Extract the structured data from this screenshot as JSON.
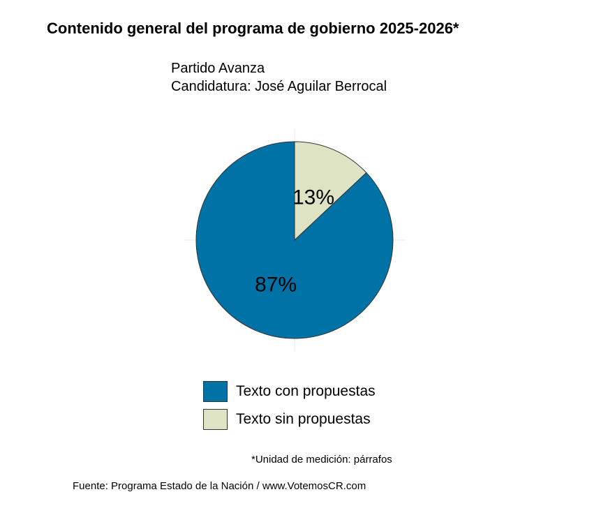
{
  "chart_data": {
    "type": "pie",
    "title": "Contenido general del programa de gobierno 2025-2026*",
    "subtitle": [
      "Partido Avanza",
      "Candidatura: José Aguilar Berrocal"
    ],
    "slices": [
      {
        "name": "Texto sin propuestas",
        "value": 13,
        "label": "13%",
        "color": "#DEE3C4"
      },
      {
        "name": "Texto con propuestas",
        "value": 87,
        "label": "87%",
        "color": "#0072A6"
      }
    ],
    "legend": [
      "Texto con propuestas",
      "Texto sin propuestas"
    ],
    "legend_placement": "bottom",
    "footnote": "*Unidad de medición: párrafos",
    "source": "Fuente: Programa Estado de la Nación / www.VotemosCR.com"
  }
}
